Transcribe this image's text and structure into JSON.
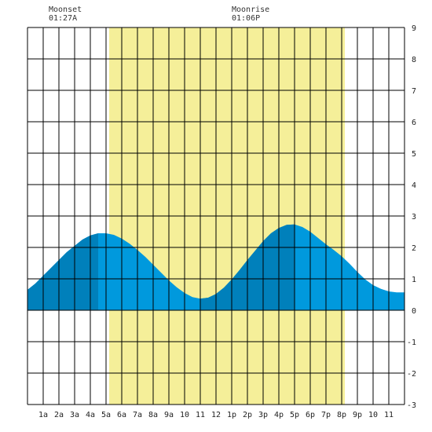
{
  "moon": {
    "moonset": {
      "label": "Moonset",
      "time": "01:27A"
    },
    "moonrise": {
      "label": "Moonrise",
      "time": "01:06P"
    }
  },
  "chart_data": {
    "type": "area",
    "title": "",
    "xlabel": "",
    "ylabel": "",
    "xlim": [
      0,
      24
    ],
    "ylim": [
      -3,
      9
    ],
    "y_ticks": [
      "9",
      "8",
      "7",
      "6",
      "5",
      "4",
      "3",
      "2",
      "1",
      "0",
      "-1",
      "-2",
      "-3"
    ],
    "x_tick_labels": [
      "1a",
      "2a",
      "3a",
      "4a",
      "5a",
      "6a",
      "7a",
      "8a",
      "9a",
      "10",
      "11",
      "12",
      "1p",
      "2p",
      "3p",
      "4p",
      "5p",
      "6p",
      "7p",
      "8p",
      "9p",
      "10",
      "11"
    ],
    "x": [
      0,
      0.5,
      1,
      1.5,
      2,
      2.5,
      3,
      3.5,
      4,
      4.5,
      5,
      5.5,
      6,
      6.5,
      7,
      7.5,
      8,
      8.5,
      9,
      9.5,
      10,
      10.5,
      11,
      11.5,
      12,
      12.5,
      13,
      13.5,
      14,
      14.5,
      15,
      15.5,
      16,
      16.5,
      17,
      17.5,
      18,
      18.5,
      19,
      19.5,
      20,
      20.5,
      21,
      21.5,
      22,
      22.5,
      23,
      23.5,
      24
    ],
    "y": [
      0.65,
      0.85,
      1.1,
      1.35,
      1.6,
      1.85,
      2.05,
      2.25,
      2.38,
      2.45,
      2.45,
      2.4,
      2.28,
      2.12,
      1.92,
      1.7,
      1.45,
      1.2,
      0.95,
      0.73,
      0.55,
      0.42,
      0.37,
      0.4,
      0.52,
      0.72,
      0.98,
      1.28,
      1.6,
      1.9,
      2.2,
      2.45,
      2.62,
      2.72,
      2.73,
      2.65,
      2.5,
      2.3,
      2.1,
      1.92,
      1.72,
      1.48,
      1.22,
      0.98,
      0.8,
      0.68,
      0.6,
      0.57,
      0.57
    ],
    "daylight": {
      "start": 5.2,
      "end": 20.2
    },
    "colors": {
      "tide_light": "#0099dd",
      "tide_dark": "#0080bb",
      "daylight": "#f5ef99",
      "grid": "#000000"
    }
  }
}
